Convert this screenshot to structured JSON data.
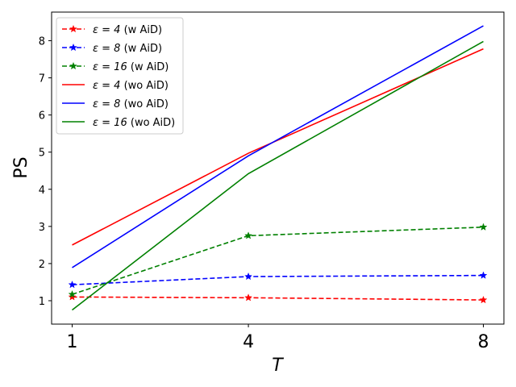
{
  "chart_data": {
    "type": "line",
    "xlabel": "T",
    "ylabel": "PS",
    "x": [
      1,
      4,
      8
    ],
    "xticks": [
      1,
      4,
      8
    ],
    "yticks": [
      1,
      2,
      3,
      4,
      5,
      6,
      7,
      8
    ],
    "xlim": [
      0.65,
      8.35
    ],
    "ylim": [
      0.37,
      8.77
    ],
    "legend_placement": "top-left",
    "grid": false,
    "series": [
      {
        "name": "ε = 4 (w AiD)",
        "eps": "ε = 4",
        "suffix": " (w AiD)",
        "color": "#ff0000",
        "dashed": true,
        "marker": "star",
        "values": [
          1.1,
          1.08,
          1.02
        ]
      },
      {
        "name": "ε = 8 (w AiD)",
        "eps": "ε = 8",
        "suffix": " (w AiD)",
        "color": "#0000ff",
        "dashed": true,
        "marker": "star",
        "values": [
          1.43,
          1.65,
          1.68
        ]
      },
      {
        "name": "ε = 16 (w AiD)",
        "eps": "ε = 16",
        "suffix": " (w AiD)",
        "color": "#008000",
        "dashed": true,
        "marker": "star",
        "values": [
          1.17,
          2.75,
          2.98
        ]
      },
      {
        "name": "ε = 4 (wo AiD)",
        "eps": "ε = 4",
        "suffix": " (wo AiD)",
        "color": "#ff0000",
        "dashed": false,
        "marker": "none",
        "values": [
          2.5,
          4.97,
          7.78
        ]
      },
      {
        "name": "ε = 8 (wo AiD)",
        "eps": "ε = 8",
        "suffix": " (wo AiD)",
        "color": "#0000ff",
        "dashed": false,
        "marker": "none",
        "values": [
          1.89,
          4.9,
          8.4
        ]
      },
      {
        "name": "ε = 16 (wo AiD)",
        "eps": "ε = 16",
        "suffix": " (wo AiD)",
        "color": "#008000",
        "dashed": false,
        "marker": "none",
        "values": [
          0.75,
          4.42,
          7.98
        ]
      }
    ]
  }
}
